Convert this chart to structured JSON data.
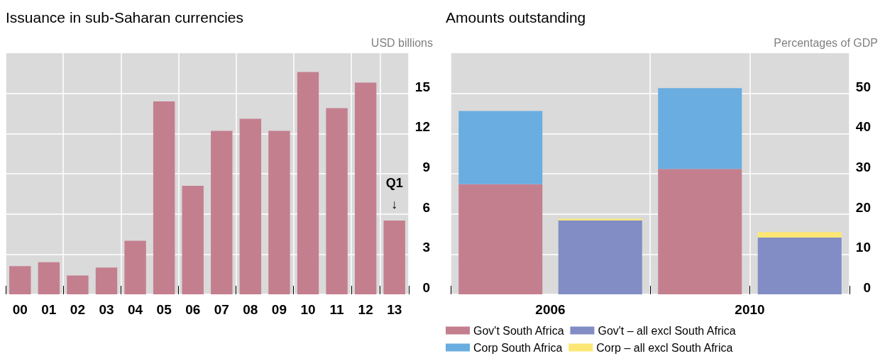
{
  "chart_data": [
    {
      "type": "bar",
      "title": "Issuance in sub-Saharan currencies",
      "ylabel": "USD billions",
      "categories": [
        "00",
        "01",
        "02",
        "03",
        "04",
        "05",
        "06",
        "07",
        "08",
        "09",
        "10",
        "11",
        "12",
        "13"
      ],
      "series": [
        {
          "color": "#c47f8f",
          "values": [
            2.1,
            2.4,
            1.4,
            2.0,
            4.0,
            14.4,
            8.1,
            12.2,
            13.1,
            12.2,
            16.6,
            13.9,
            15.8,
            5.5
          ]
        }
      ],
      "ylim": [
        0,
        18
      ],
      "yticks": [
        0,
        3,
        6,
        9,
        12,
        15
      ],
      "grid": true,
      "legend": false,
      "annotations": [
        {
          "text": "Q1\n↓",
          "x": "13",
          "y": 5.5
        }
      ]
    },
    {
      "type": "bar",
      "title": "Amounts outstanding",
      "ylabel": "Percentages of GDP",
      "stacked": true,
      "categories": [
        "2006",
        null,
        "2010",
        null
      ],
      "series": [
        {
          "name": "Gov't South Africa",
          "color": "#c47f8f",
          "values": [
            27.4,
            null,
            31.2,
            null
          ]
        },
        {
          "name": "Gov't – all excl South Africa",
          "color": "#818dc4",
          "values": [
            null,
            18.4,
            null,
            14.1
          ]
        },
        {
          "name": "Corp South Africa",
          "color": "#6aade0",
          "values": [
            18.2,
            null,
            20.1,
            null
          ]
        },
        {
          "name": "Corp – all excl South Africa",
          "color": "#fce774",
          "values": [
            null,
            0.4,
            null,
            1.4
          ]
        }
      ],
      "ylim": [
        0,
        60
      ],
      "yticks": [
        0,
        10,
        20,
        30,
        40,
        50
      ],
      "grid": true,
      "legend": "bottom"
    }
  ]
}
